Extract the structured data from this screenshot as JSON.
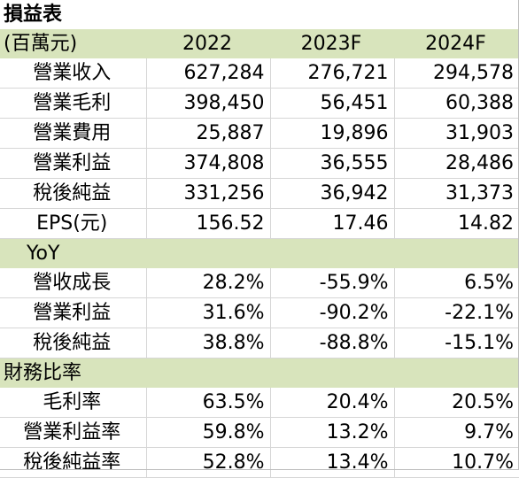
{
  "title": "損益表",
  "header": {
    "unit_label": "(百萬元)",
    "years": [
      "2022",
      "2023F",
      "2024F"
    ]
  },
  "income_rows": [
    {
      "label": "營業收入",
      "values": [
        "627,284",
        "276,721",
        "294,578"
      ]
    },
    {
      "label": "營業毛利",
      "values": [
        "398,450",
        "56,451",
        "60,388"
      ]
    },
    {
      "label": "營業費用",
      "values": [
        "25,887",
        "19,896",
        "31,903"
      ]
    },
    {
      "label": "營業利益",
      "values": [
        "374,808",
        "36,555",
        "28,486"
      ]
    },
    {
      "label": "稅後純益",
      "values": [
        "331,256",
        "36,942",
        "31,373"
      ]
    },
    {
      "label": "EPS(元)",
      "values": [
        "156.52",
        "17.46",
        "14.82"
      ]
    }
  ],
  "yoy": {
    "heading": "YoY",
    "rows": [
      {
        "label": "營收成長",
        "values": [
          "28.2%",
          "-55.9%",
          "6.5%"
        ]
      },
      {
        "label": "營業利益",
        "values": [
          "31.6%",
          "-90.2%",
          "-22.1%"
        ]
      },
      {
        "label": "稅後純益",
        "values": [
          "38.8%",
          "-88.8%",
          "-15.1%"
        ]
      }
    ]
  },
  "ratios": {
    "heading": "財務比率",
    "rows": [
      {
        "label": "毛利率",
        "values": [
          "63.5%",
          "20.4%",
          "20.5%"
        ]
      },
      {
        "label": "營業利益率",
        "values": [
          "59.8%",
          "13.2%",
          "9.7%"
        ]
      },
      {
        "label": "稅後純益率",
        "values": [
          "52.8%",
          "13.4%",
          "10.7%"
        ]
      }
    ]
  }
}
